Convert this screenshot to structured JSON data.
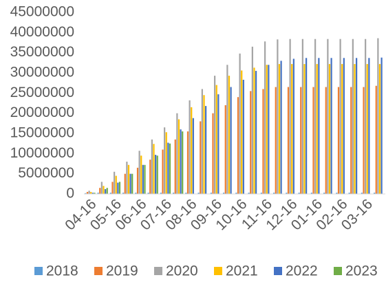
{
  "chart_data": {
    "type": "bar",
    "categories": [
      "04-16",
      null,
      "05-16",
      null,
      "06-16",
      null,
      "07-16",
      null,
      "08-16",
      null,
      "09-16",
      null,
      "10-16",
      null,
      "11-16",
      null,
      "12-16",
      null,
      "01-16",
      null,
      "02-16",
      null,
      "03-16",
      null
    ],
    "series": [
      {
        "name": "2018",
        "color": "#5b9bd5",
        "values": [
          200000,
          300000,
          300000,
          300000,
          300000,
          300000,
          300000,
          300000,
          300000,
          300000,
          300000,
          300000,
          300000,
          300000,
          300000,
          300000,
          300000,
          300000,
          300000,
          300000,
          300000,
          300000,
          300000,
          300000
        ]
      },
      {
        "name": "2019",
        "color": "#ed7d31",
        "values": [
          500000,
          1500000,
          3000000,
          5000000,
          6500000,
          8500000,
          11000000,
          13500000,
          15500000,
          18000000,
          20000000,
          22000000,
          24000000,
          25500000,
          26000000,
          26500000,
          26500000,
          26500000,
          26500000,
          26500000,
          26500000,
          26500000,
          26500000,
          26800000
        ]
      },
      {
        "name": "2020",
        "color": "#a5a5a5",
        "values": [
          800000,
          3000000,
          5500000,
          8000000,
          10700000,
          13500000,
          16500000,
          20000000,
          23200000,
          26000000,
          29300000,
          32000000,
          34800000,
          36500000,
          37800000,
          38300000,
          38400000,
          38400000,
          38400000,
          38400000,
          38400000,
          38400000,
          38400000,
          38600000
        ]
      },
      {
        "name": "2021",
        "color": "#ffc000",
        "values": [
          500000,
          2000000,
          4500000,
          7200000,
          9500000,
          12400000,
          15300000,
          18500000,
          21500000,
          24500000,
          27000000,
          29300000,
          30600000,
          31300000,
          32000000,
          32200000,
          32200000,
          32200000,
          32200000,
          32200000,
          32200000,
          32200000,
          32200000,
          32200000
        ]
      },
      {
        "name": "2022",
        "color": "#4472c4",
        "values": [
          300000,
          1200000,
          2800000,
          5000000,
          7200000,
          9700000,
          12700000,
          16000000,
          18800000,
          21800000,
          24700000,
          26500000,
          28300000,
          30500000,
          32000000,
          33000000,
          33500000,
          33700000,
          33700000,
          33700000,
          33700000,
          33700000,
          33700000,
          33800000
        ]
      },
      {
        "name": "2023",
        "color": "#70ad47",
        "values": [
          300000,
          1500000,
          3000000,
          5000000,
          7200000,
          9500000,
          12500000,
          15500000,
          null,
          null,
          null,
          null,
          null,
          null,
          null,
          null,
          null,
          null,
          null,
          null,
          null,
          null,
          null,
          null
        ]
      }
    ],
    "ylim": [
      0,
      45000000
    ],
    "yticks": [
      0,
      5000000,
      10000000,
      15000000,
      20000000,
      25000000,
      30000000,
      35000000,
      40000000,
      45000000
    ],
    "grid": false,
    "legend": "bottom"
  }
}
